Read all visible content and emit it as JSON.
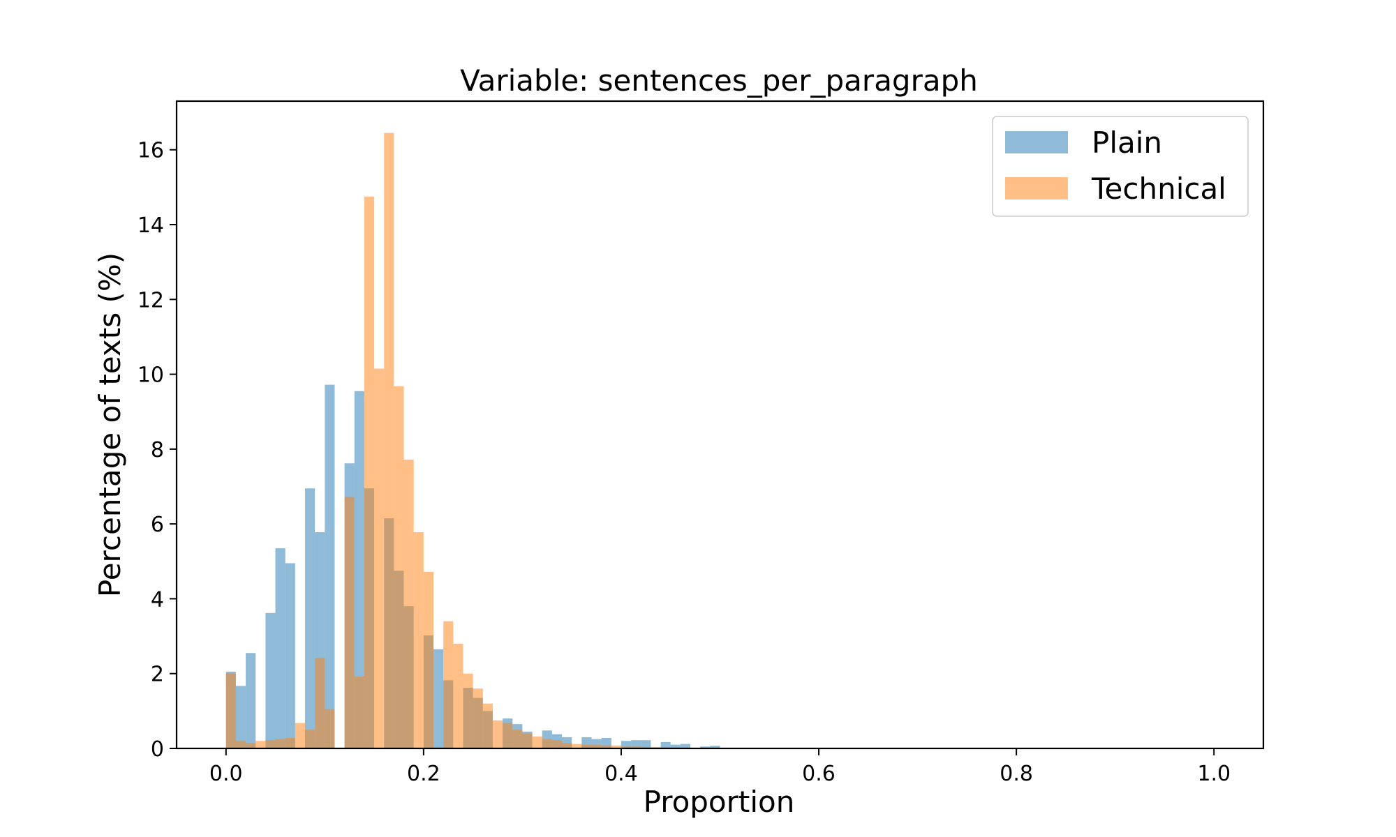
{
  "chart_data": {
    "type": "bar",
    "title": "Variable: sentences_per_paragraph",
    "xlabel": "Proportion",
    "ylabel": "Percentage of texts (%)",
    "xlim": [
      -0.05,
      1.05
    ],
    "ylim": [
      0,
      17.3
    ],
    "xticks": [
      0.0,
      0.2,
      0.4,
      0.6,
      0.8,
      1.0
    ],
    "xtick_labels": [
      "0.0",
      "0.2",
      "0.4",
      "0.6",
      "0.8",
      "1.0"
    ],
    "yticks": [
      0,
      2,
      4,
      6,
      8,
      10,
      12,
      14,
      16
    ],
    "ytick_labels": [
      "0",
      "2",
      "4",
      "6",
      "8",
      "10",
      "12",
      "14",
      "16"
    ],
    "bin_width": 0.01,
    "bin_starts": [
      0.0,
      0.01,
      0.02,
      0.03,
      0.04,
      0.05,
      0.06,
      0.07,
      0.08,
      0.09,
      0.1,
      0.11,
      0.12,
      0.13,
      0.14,
      0.15,
      0.16,
      0.17,
      0.18,
      0.19,
      0.2,
      0.21,
      0.22,
      0.23,
      0.24,
      0.25,
      0.26,
      0.27,
      0.28,
      0.29,
      0.3,
      0.31,
      0.32,
      0.33,
      0.34,
      0.35,
      0.36,
      0.37,
      0.38,
      0.39,
      0.4,
      0.41,
      0.42,
      0.43,
      0.44,
      0.45,
      0.46,
      0.47,
      0.48,
      0.49
    ],
    "grid": false,
    "legend_position": "top-right",
    "series": [
      {
        "name": "Plain",
        "color": "#1f77b4",
        "opacity": 0.5,
        "values": [
          2.05,
          1.67,
          2.55,
          0.0,
          3.62,
          5.35,
          4.95,
          0.0,
          6.95,
          5.78,
          9.72,
          0.0,
          7.62,
          9.55,
          6.95,
          0.0,
          6.15,
          4.75,
          3.8,
          0.0,
          3.02,
          2.65,
          1.82,
          0.0,
          1.62,
          1.35,
          1.0,
          0.0,
          0.8,
          0.65,
          0.45,
          0.0,
          0.48,
          0.38,
          0.3,
          0.0,
          0.3,
          0.25,
          0.28,
          0.0,
          0.2,
          0.22,
          0.22,
          0.0,
          0.17,
          0.1,
          0.12,
          0.0,
          0.05,
          0.07
        ]
      },
      {
        "name": "Technical",
        "color": "#ff7f0e",
        "opacity": 0.5,
        "values": [
          2.0,
          0.2,
          0.15,
          0.2,
          0.22,
          0.25,
          0.28,
          0.68,
          0.5,
          2.42,
          1.05,
          0.0,
          6.72,
          1.92,
          14.75,
          10.15,
          16.45,
          9.68,
          7.72,
          5.78,
          4.72,
          0.0,
          3.4,
          2.8,
          2.0,
          1.6,
          1.2,
          0.75,
          0.68,
          0.5,
          0.4,
          0.32,
          0.25,
          0.22,
          0.15,
          0.12,
          0.1,
          0.1,
          0.08,
          0.08,
          0.05,
          0.05,
          0.04,
          0.04,
          0.03,
          0.03,
          0.02,
          0.02,
          0.02,
          0.02
        ]
      }
    ]
  }
}
